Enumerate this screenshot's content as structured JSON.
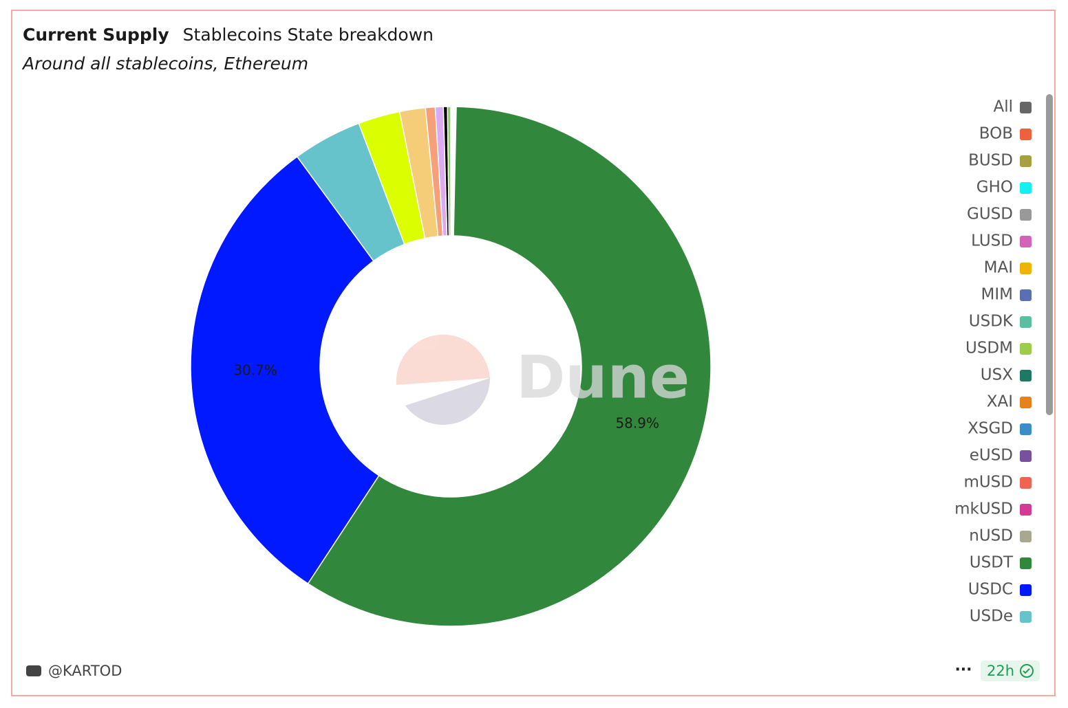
{
  "chart_data": {
    "type": "donut",
    "title": "Current Supply",
    "subtitle": "Stablecoins State breakdown",
    "annotations": [
      "Around all stablecoins, Ethereum"
    ],
    "categories": [
      "All",
      "BOB",
      "BUSD",
      "GHO",
      "GUSD",
      "LUSD",
      "MAI",
      "MIM",
      "USDK",
      "USDM",
      "USX",
      "XAI",
      "XSGD",
      "eUSD",
      "mUSD",
      "mkUSD",
      "nUSD",
      "USDT",
      "USDC",
      "USDe",
      null,
      null,
      null,
      null,
      null,
      null
    ],
    "values": [
      0.02,
      0.02,
      0.02,
      0.02,
      0.02,
      0.02,
      0.02,
      0.02,
      0.02,
      0.02,
      0.02,
      0.02,
      0.02,
      0.02,
      0.02,
      0.02,
      0.02,
      58.9,
      30.7,
      4.3,
      2.6,
      1.6,
      0.6,
      0.5,
      0.25,
      0.2
    ],
    "value_labels": [
      null,
      null,
      null,
      null,
      null,
      null,
      null,
      null,
      null,
      null,
      null,
      null,
      null,
      null,
      null,
      null,
      null,
      "58.9%",
      "30.7%",
      null,
      null,
      null,
      null,
      null,
      null,
      null
    ],
    "colors": [
      "#666666",
      "#f0603c",
      "#a6a03f",
      "#14f0f0",
      "#999999",
      "#d263b8",
      "#f0b400",
      "#5a6eb4",
      "#5abea0",
      "#9ccc4a",
      "#1e7864",
      "#e6821e",
      "#3c8cc8",
      "#7850a0",
      "#ee6450",
      "#d23c96",
      "#a8a890",
      "#31883c",
      "#0019ff",
      "#66c3cb",
      "#dcff00",
      "#f5cd78",
      "#f5a078",
      "#dcaaf0",
      "#000000",
      "#8ccc64"
    ],
    "legend": "right"
  },
  "watermark": "Dune",
  "footer": {
    "author": "@KARTOD",
    "age": "22h"
  }
}
